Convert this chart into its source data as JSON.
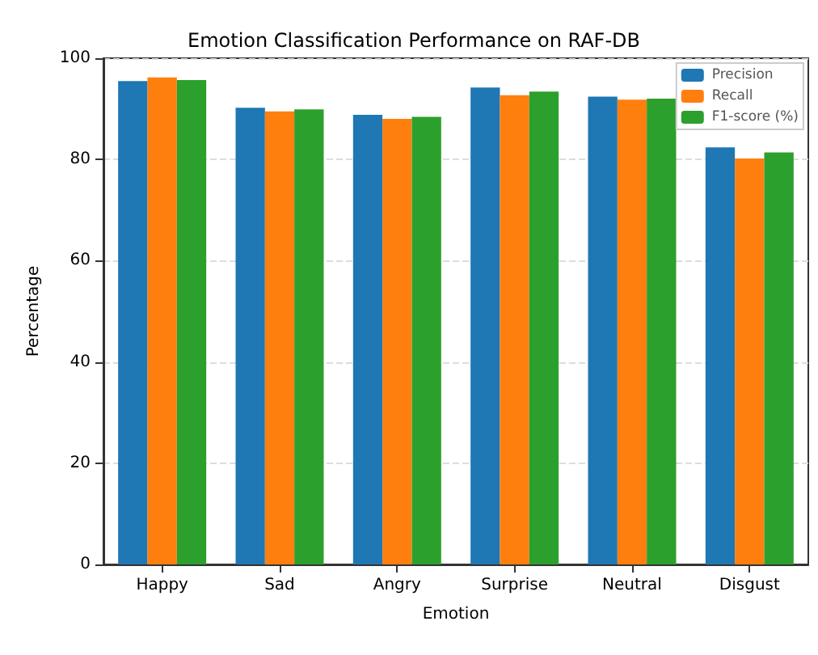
{
  "chart_data": {
    "type": "bar",
    "title": "Emotion Classification Performance on RAF-DB",
    "xlabel": "Emotion",
    "ylabel": "Percentage",
    "categories": [
      "Happy",
      "Sad",
      "Angry",
      "Surprise",
      "Neutral",
      "Disgust"
    ],
    "series": [
      {
        "name": "Precision",
        "color": "#1f77b4",
        "values": [
          95.5,
          90.2,
          88.8,
          94.2,
          92.4,
          82.4
        ]
      },
      {
        "name": "Recall",
        "color": "#ff7f0e",
        "values": [
          96.2,
          89.5,
          88.0,
          92.7,
          91.8,
          80.2
        ]
      },
      {
        "name": "F1-score (%)",
        "color": "#2ca02c",
        "values": [
          95.7,
          89.9,
          88.4,
          93.4,
          92.0,
          81.4
        ]
      }
    ],
    "ylim": [
      0,
      100
    ],
    "yticks": [
      0,
      20,
      40,
      60,
      80,
      100
    ],
    "grid": "y",
    "legend": "top right"
  }
}
